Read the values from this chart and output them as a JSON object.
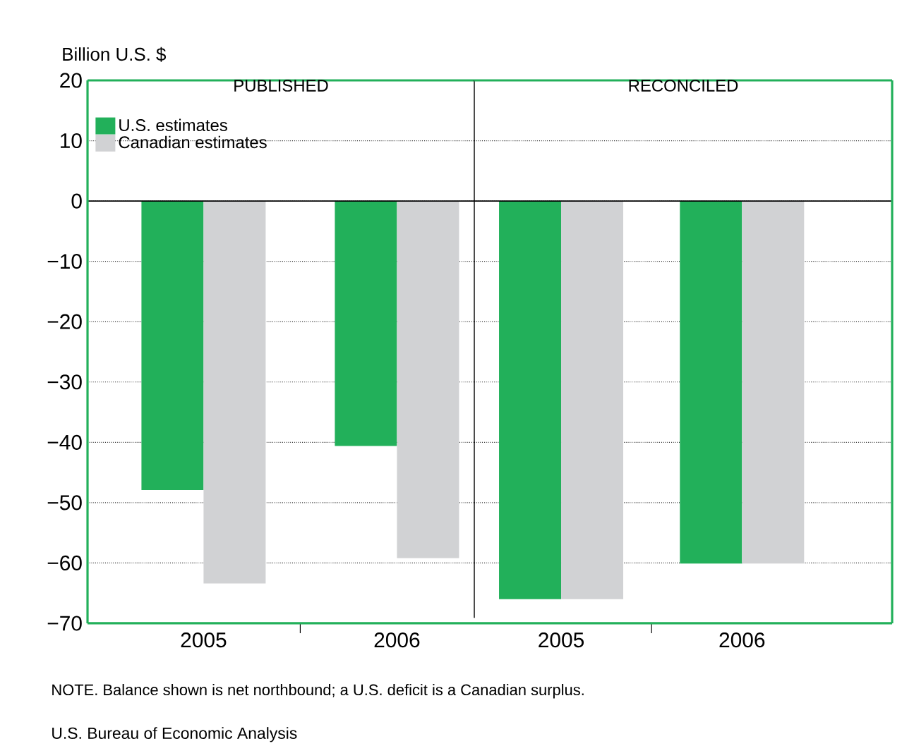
{
  "chart_data": [
    {
      "type": "bar",
      "title": "PUBLISHED",
      "ylabel": "Billion U.S. $",
      "categories": [
        "2005",
        "2006"
      ],
      "series": [
        {
          "name": "U.S. estimates",
          "color": "#22b05a",
          "values": [
            -47.9,
            -40.6
          ]
        },
        {
          "name": "Canadian estimates",
          "color": "#d1d2d4",
          "values": [
            -63.4,
            -59.2
          ]
        }
      ],
      "ylim": [
        -70,
        20
      ],
      "yticks": [
        {
          "value": -70,
          "label": "−70"
        },
        {
          "value": -60,
          "label": "−60"
        },
        {
          "value": -50,
          "label": "−50"
        },
        {
          "value": -40,
          "label": "−40"
        },
        {
          "value": -30,
          "label": "−30"
        },
        {
          "value": -20,
          "label": "−20"
        },
        {
          "value": -10,
          "label": "−10"
        },
        0,
        10,
        20
      ],
      "grid": "y",
      "legend": "top left",
      "annotations": [
        "NOTE. Balance shown is net northbound; a U.S. deficit is a Canadian surplus.",
        "U.S. Bureau of Economic Analysis"
      ]
    },
    {
      "type": "bar",
      "title": "RECONCILED",
      "categories": [
        "2005",
        "2006"
      ],
      "series": [
        {
          "color": "#22b05a",
          "values": [
            -66.0,
            -60.1
          ]
        },
        {
          "color": "#d1d2d4",
          "values": [
            -66.0,
            -60.1
          ]
        }
      ],
      "ylim": [
        -70,
        20
      ],
      "yticks": [
        -70,
        -60,
        -50,
        -40,
        -30,
        -20,
        -10,
        0,
        10,
        20
      ],
      "grid": "y",
      "tick_labels": "x"
    }
  ]
}
